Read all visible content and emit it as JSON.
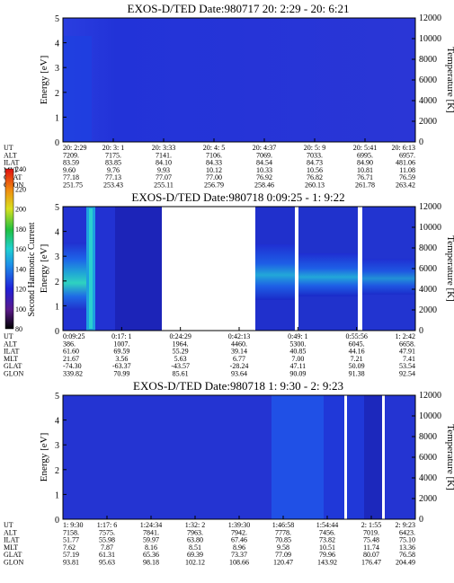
{
  "chart_data": [
    {
      "type": "heatmap",
      "title": "EXOS-D/TED   Date:980717  20: 2:29 - 20: 6:21",
      "ylabel": "Energy [eV]",
      "y2label": "Temperature [K]",
      "ylim": [
        0,
        5
      ],
      "y2lim": [
        0,
        12000
      ],
      "yticks": [
        "0",
        "1",
        "2",
        "3",
        "4",
        "5"
      ],
      "y2ticks": [
        "0",
        "2000",
        "4000",
        "6000",
        "8000",
        "10000",
        "12000"
      ],
      "orbit_labels": [
        "UT",
        "ALT",
        "ILAT",
        "MLT",
        "GLAT",
        "GLON"
      ],
      "orbit_columns": [
        [
          "20: 2:29",
          "7209.",
          "83.59",
          "9.60",
          "77.18",
          "251.75"
        ],
        [
          "20: 3: 1",
          "7175.",
          "83.85",
          "9.76",
          "77.13",
          "253.43"
        ],
        [
          "20: 3:33",
          "7141.",
          "84.10",
          "9.93",
          "77.07",
          "255.11"
        ],
        [
          "20: 4: 5",
          "7106.",
          "84.33",
          "10.12",
          "77.00",
          "256.79"
        ],
        [
          "20: 4:37",
          "7069.",
          "84.54",
          "10.33",
          "76.92",
          "258.46"
        ],
        [
          "20: 5: 9",
          "7033.",
          "84.73",
          "10.56",
          "76.82",
          "260.13"
        ],
        [
          "20: 5:41",
          "6995.",
          "84.90",
          "10.81",
          "76.71",
          "261.78"
        ],
        [
          "20: 6:13",
          "6957.",
          "481.06",
          "11.08",
          "76.59",
          "263.42"
        ]
      ]
    },
    {
      "type": "heatmap",
      "title": "EXOS-D/TED   Date:980718  0:09:25 - 1: 9:22",
      "ylabel": "Energy [eV]",
      "y2label": "Temperature [K]",
      "colorbar_label": "Second Harmonic Current",
      "colorbar_ticks": [
        "80",
        "100",
        "120",
        "140",
        "160",
        "180",
        "200",
        "220",
        "240"
      ],
      "ylim": [
        0,
        5
      ],
      "y2lim": [
        0,
        12000
      ],
      "yticks": [
        "0",
        "1",
        "2",
        "3",
        "4",
        "5"
      ],
      "y2ticks": [
        "0",
        "2000",
        "4000",
        "6000",
        "8000",
        "10000",
        "12000"
      ],
      "orbit_labels": [
        "UT",
        "ALT",
        "ILAT",
        "MLT",
        "GLAT",
        "GLON"
      ],
      "orbit_columns": [
        [
          "0:09:25",
          "386.",
          "61.60",
          "21.67",
          "-74.30",
          "339.82"
        ],
        [
          "0:17: 1",
          "1007.",
          "69.59",
          "3.56",
          "-63.37",
          "70.99"
        ],
        [
          "0:24:29",
          "1964.",
          "55.29",
          "5.63",
          "-43.57",
          "85.61"
        ],
        [
          "0:42:13",
          "4460.",
          "39.14",
          "6.77",
          "-28.24",
          "93.64"
        ],
        [
          "0:49: 1",
          "5300.",
          "40.85",
          "7.00",
          "47.11",
          "90.09"
        ],
        [
          "0:55:56",
          "6045.",
          "44.16",
          "7.21",
          "50.09",
          "91.38"
        ],
        [
          "1: 2:42",
          "6658.",
          "47.91",
          "7.41",
          "53.54",
          "92.54"
        ]
      ]
    },
    {
      "type": "heatmap",
      "title": "EXOS-D/TED   Date:980718  1: 9:30 - 2: 9:23",
      "ylabel": "Energy [eV]",
      "y2label": "Temperature [K]",
      "ylim": [
        0,
        5
      ],
      "y2lim": [
        0,
        12000
      ],
      "yticks": [
        "0",
        "1",
        "2",
        "3",
        "4",
        "5"
      ],
      "y2ticks": [
        "0",
        "2000",
        "4000",
        "6000",
        "8000",
        "10000",
        "12000"
      ],
      "orbit_labels": [
        "UT",
        "ALT",
        "ILAT",
        "MLT",
        "GLAT",
        "GLON"
      ],
      "orbit_columns": [
        [
          "1: 9:30",
          "7158.",
          "51.77",
          "7.62",
          "57.19",
          "93.81"
        ],
        [
          "1:17: 6",
          "7575.",
          "55.98",
          "7.87",
          "61.31",
          "95.63"
        ],
        [
          "1:24:34",
          "7841.",
          "59.97",
          "8.16",
          "65.36",
          "98.18"
        ],
        [
          "1:32: 2",
          "7963.",
          "63.80",
          "8.51",
          "69.39",
          "102.12"
        ],
        [
          "1:39:30",
          "7942.",
          "67.46",
          "8.96",
          "73.37",
          "108.66"
        ],
        [
          "1:46:58",
          "7778.",
          "70.85",
          "9.58",
          "77.09",
          "120.47"
        ],
        [
          "1:54:44",
          "7456.",
          "73.82",
          "10.51",
          "79.96",
          "143.92"
        ],
        [
          "2: 1:55",
          "7019.",
          "75.48",
          "11.74",
          "80.07",
          "176.47"
        ],
        [
          "2: 9:23",
          "6423.",
          "75.10",
          "13.36",
          "76.58",
          "204.49"
        ]
      ]
    }
  ]
}
